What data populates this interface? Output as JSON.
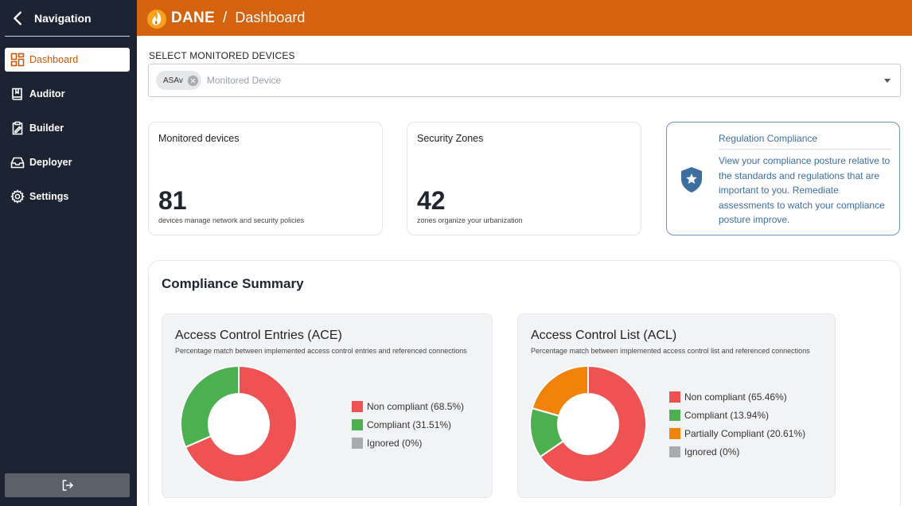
{
  "sidebar": {
    "title": "Navigation",
    "items": [
      {
        "label": "Dashboard",
        "icon": "dashboard-icon"
      },
      {
        "label": "Auditor",
        "icon": "book-icon"
      },
      {
        "label": "Builder",
        "icon": "clipboard-icon"
      },
      {
        "label": "Deployer",
        "icon": "inbox-icon"
      },
      {
        "label": "Settings",
        "icon": "gear-icon"
      }
    ],
    "logout_icon": "logout-icon"
  },
  "header": {
    "brand": "DANE",
    "separator": "/",
    "page": "Dashboard",
    "color": "#d4620e"
  },
  "device_select": {
    "label": "SELECT MONITORED DEVICES",
    "chip": "ASAv",
    "placeholder": "Monitored Device"
  },
  "cards": {
    "monitored": {
      "title": "Monitored devices",
      "value": "81",
      "subtitle": "devices manage network and security policies"
    },
    "zones": {
      "title": "Security Zones",
      "value": "42",
      "subtitle": "zones organize your urbanization"
    }
  },
  "regulation": {
    "title": "Regulation Compliance",
    "text": "View your compliance posture relative to the standards and regulations that are important to you. Remediate assessments to watch your compliance posture improve.",
    "icon": "shield-star-icon"
  },
  "summary": {
    "title": "Compliance Summary"
  },
  "chart_data": [
    {
      "type": "pie",
      "title": "Access Control Entries (ACE)",
      "subtitle": "Percentage match between implemented access control entries and referenced connections",
      "slices": [
        {
          "label": "Non compliant (68.5%)",
          "value": 68.5,
          "color": "#ee5253"
        },
        {
          "label": "Compliant (31.51%)",
          "value": 31.51,
          "color": "#4caf50"
        },
        {
          "label": "Ignored (0%)",
          "value": 0,
          "color": "#a9abaf"
        }
      ]
    },
    {
      "type": "pie",
      "title": "Access Control List (ACL)",
      "subtitle": "Percentage match between implemented access control list and referenced connections",
      "slices": [
        {
          "label": "Non compliant (65.46%)",
          "value": 65.46,
          "color": "#ee5253"
        },
        {
          "label": "Compliant (13.94%)",
          "value": 13.94,
          "color": "#4caf50"
        },
        {
          "label": "Partially Compliant (20.61%)",
          "value": 20.61,
          "color": "#f0830a"
        },
        {
          "label": "Ignored (0%)",
          "value": 0,
          "color": "#a9abaf"
        }
      ]
    }
  ]
}
